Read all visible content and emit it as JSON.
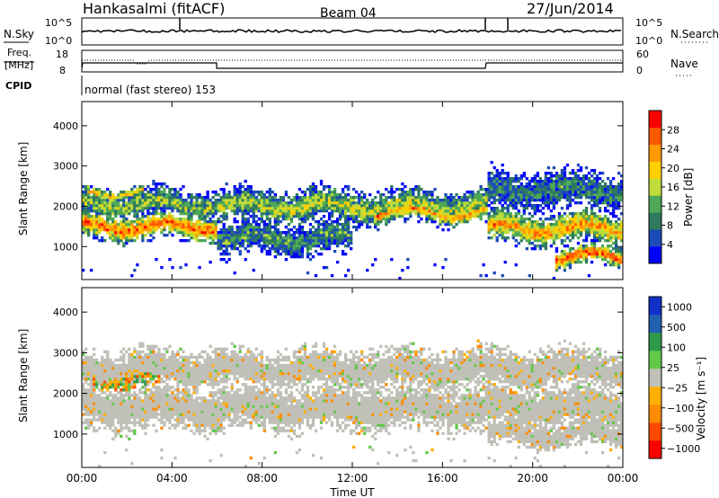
{
  "header": {
    "station": "Hankasalmi (fitACF)",
    "beam": "Beam 04",
    "date": "27/Jun/2014"
  },
  "top_panels": {
    "nsky_label": "N.Sky",
    "nsky_ticks": [
      "10^5",
      "10^0"
    ],
    "nsearch_label": "N.Search",
    "nsearch_ticks": [
      "10^5",
      "10^0"
    ],
    "freq_label_line1": "Freq.",
    "freq_label_line2": "[MHz]",
    "freq_ticks": [
      "18",
      "8"
    ],
    "nave_label": "Nave",
    "nave_ticks": [
      "60",
      "0"
    ],
    "cpid_label": "CPID",
    "cpid_text": "normal (fast stereo) 153"
  },
  "chart_data": [
    {
      "type": "heatmap",
      "panel": "power",
      "ylabel": "Slant Range [km]",
      "yticks": [
        "1000",
        "2000",
        "3000",
        "4000"
      ],
      "ylim": [
        180,
        4600
      ],
      "xlim": [
        0,
        24
      ],
      "colorbar_label": "Power [dB]",
      "colorbar_ticks": [
        "4",
        "8",
        "12",
        "16",
        "20",
        "24",
        "28"
      ],
      "colors": [
        "#0000ff",
        "#1c4ab8",
        "#2f7a5e",
        "#4fa857",
        "#c0dc3a",
        "#ffd000",
        "#ff9a00",
        "#ff5a00",
        "#ff0000"
      ],
      "bands": [
        {
          "t0": 0.0,
          "t1": 6.0,
          "center": 1500,
          "width": 420,
          "level": 0.85
        },
        {
          "t0": 0.0,
          "t1": 6.0,
          "center": 2050,
          "width": 500,
          "level": 0.45
        },
        {
          "t0": 0.3,
          "t1": 2.8,
          "center": 2350,
          "width": 200,
          "level": 0.65
        },
        {
          "t0": 6.0,
          "t1": 18.0,
          "center": 2000,
          "width": 520,
          "level": 0.5
        },
        {
          "t0": 6.0,
          "t1": 12.0,
          "center": 1200,
          "width": 500,
          "level": 0.35
        },
        {
          "t0": 13.0,
          "t1": 18.0,
          "center": 1850,
          "width": 300,
          "level": 0.75
        },
        {
          "t0": 18.0,
          "t1": 24.0,
          "center": 1450,
          "width": 500,
          "level": 0.75
        },
        {
          "t0": 21.0,
          "t1": 24.0,
          "center": 750,
          "width": 300,
          "level": 0.9
        },
        {
          "t0": 18.0,
          "t1": 24.0,
          "center": 2400,
          "width": 600,
          "level": 0.3
        }
      ]
    },
    {
      "type": "heatmap",
      "panel": "velocity",
      "ylabel": "Slant Range [km]",
      "yticks": [
        "1000",
        "2000",
        "3000",
        "4000"
      ],
      "ylim": [
        180,
        4600
      ],
      "xlim": [
        0,
        24
      ],
      "xticks": [
        "00:00",
        "04:00",
        "08:00",
        "12:00",
        "16:00",
        "20:00",
        "00:00"
      ],
      "xlabel": "Time UT",
      "colorbar_label": "Velocity  [m s⁻¹]",
      "colorbar_ticks": [
        "1000",
        "500",
        "100",
        "25",
        "−25",
        "−100",
        "−500",
        "−1000"
      ],
      "colors": [
        "#ff0000",
        "#ff4a00",
        "#ff8c00",
        "#ffb000",
        "#c0c0b8",
        "#64c84a",
        "#2e9a4a",
        "#2060b0",
        "#1030c8"
      ],
      "bands": [
        {
          "t0": 0.0,
          "t1": 24.0,
          "center": 1650,
          "width": 700,
          "level": 0.5
        },
        {
          "t0": 0.5,
          "t1": 3.5,
          "center": 2350,
          "width": 300,
          "level": 0.7
        },
        {
          "t0": 18.0,
          "t1": 24.0,
          "center": 1000,
          "width": 400,
          "level": 0.45
        },
        {
          "t0": 0.0,
          "t1": 24.0,
          "center": 2600,
          "width": 600,
          "level": 0.5
        }
      ]
    }
  ]
}
